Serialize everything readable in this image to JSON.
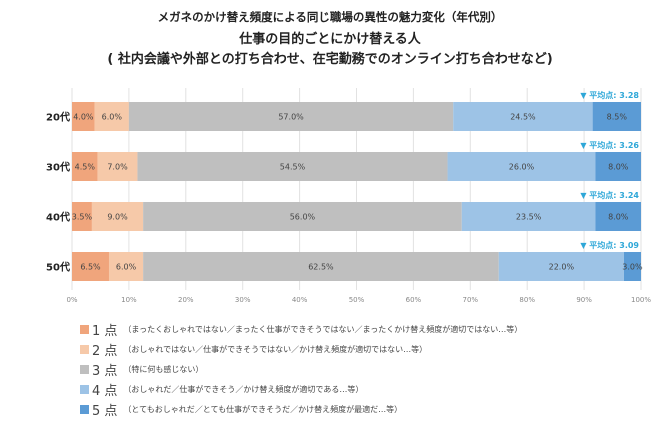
{
  "title": "メガネのかけ替え頻度による同じ職場の異性の魅力変化（年代別）",
  "subtitle1": "仕事の目的ごとにかけ替える人",
  "subtitle2": "( 社内会議や外部との打ち合わせ、在宅勤務でのオンライン打ち合わせなど)",
  "chart_data": {
    "type": "bar",
    "orientation": "horizontal",
    "stacked": true,
    "categories": [
      "20代",
      "30代",
      "40代",
      "50代"
    ],
    "series": [
      {
        "name": "1 点",
        "values": [
          4.0,
          4.5,
          3.5,
          6.5
        ],
        "color": "#f0a57c"
      },
      {
        "name": "2 点",
        "values": [
          6.0,
          7.0,
          9.0,
          6.0
        ],
        "color": "#f6c9a9"
      },
      {
        "name": "3 点",
        "values": [
          57.0,
          54.5,
          56.0,
          62.5
        ],
        "color": "#bfbfbf"
      },
      {
        "name": "4 点",
        "values": [
          24.5,
          26.0,
          23.5,
          22.0
        ],
        "color": "#9dc3e6"
      },
      {
        "name": "5 点",
        "values": [
          8.5,
          8.0,
          8.0,
          3.0
        ],
        "color": "#5b9bd5"
      }
    ],
    "data_labels": [
      [
        "4.0%",
        "6.0%",
        "57.0%",
        "24.5%",
        "8.5%"
      ],
      [
        "4.5%",
        "7.0%",
        "54.5%",
        "26.0%",
        "8.0%"
      ],
      [
        "3.5%",
        "9.0%",
        "56.0%",
        "23.5%",
        "8.0%"
      ],
      [
        "6.5%",
        "6.0%",
        "62.5%",
        "22.0%",
        "3.0%"
      ]
    ],
    "annotations": [
      "▼ 平均点: 3.28",
      "▼ 平均点: 3.26",
      "▼ 平均点: 3.24",
      "▼ 平均点: 3.09"
    ],
    "annotation_color": "#2ea7d8",
    "xlim": [
      0,
      100
    ],
    "xticks": [
      "0%",
      "10%",
      "20%",
      "30%",
      "40%",
      "50%",
      "60%",
      "70%",
      "80%",
      "90%",
      "100%"
    ],
    "grid": true,
    "legend_position": "bottom"
  },
  "legend_desc": [
    "（まったくおしゃれではない／まったく仕事ができそうではない／まったくかけ替え頻度が適切ではない…等）",
    "（おしゃれではない／仕事ができそうではない／かけ替え頻度が適切ではない…等）",
    "（特に何も感じない）",
    "（おしゃれだ／仕事ができそう／かけ替え頻度が適切である…等）",
    "（とてもおしゃれだ／とても仕事ができそうだ／かけ替え頻度が最適だ…等）"
  ]
}
